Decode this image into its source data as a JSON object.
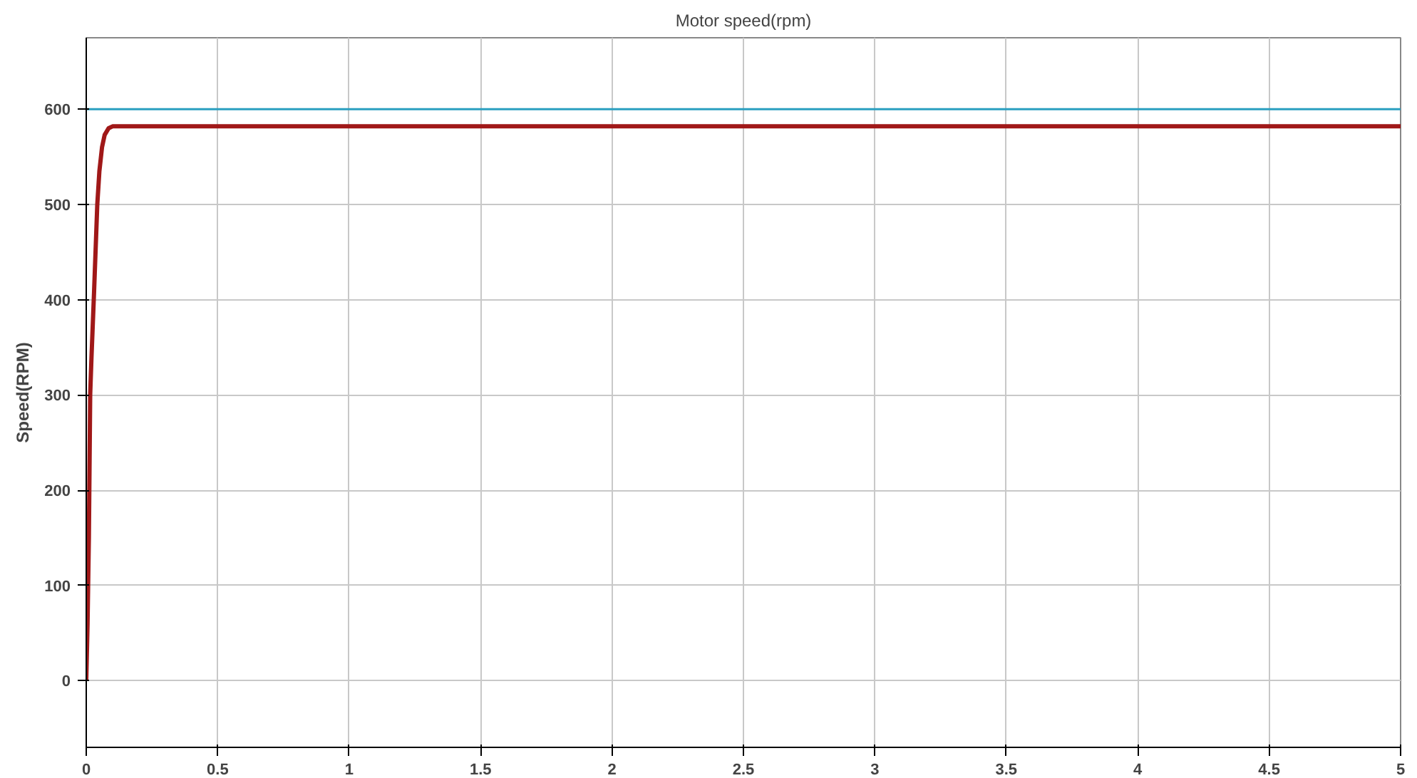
{
  "chart_data": {
    "type": "line",
    "title": "Motor speed(rpm)",
    "ylabel": "Speed(RPM)",
    "xlim": [
      0,
      5
    ],
    "ylim": [
      -70,
      675
    ],
    "xticks": [
      0,
      0.5,
      1,
      1.5,
      2,
      2.5,
      3,
      3.5,
      4,
      4.5,
      5
    ],
    "yticks": [
      0,
      100,
      200,
      300,
      400,
      500,
      600
    ],
    "grid": true,
    "series": [
      {
        "color": "#2a9fc0",
        "x": [
          0,
          5
        ],
        "values": [
          600,
          600
        ]
      },
      {
        "color": "#a01818",
        "x": [
          0,
          0.005,
          0.01,
          0.015,
          0.02,
          0.03,
          0.042,
          0.05,
          0.06,
          0.07,
          0.085,
          0.1,
          0.5,
          1,
          2,
          3,
          4,
          5
        ],
        "values": [
          0,
          60,
          150,
          300,
          340,
          410,
          500,
          535,
          560,
          573,
          580,
          582,
          582,
          582,
          582,
          582,
          582,
          582
        ]
      }
    ]
  }
}
